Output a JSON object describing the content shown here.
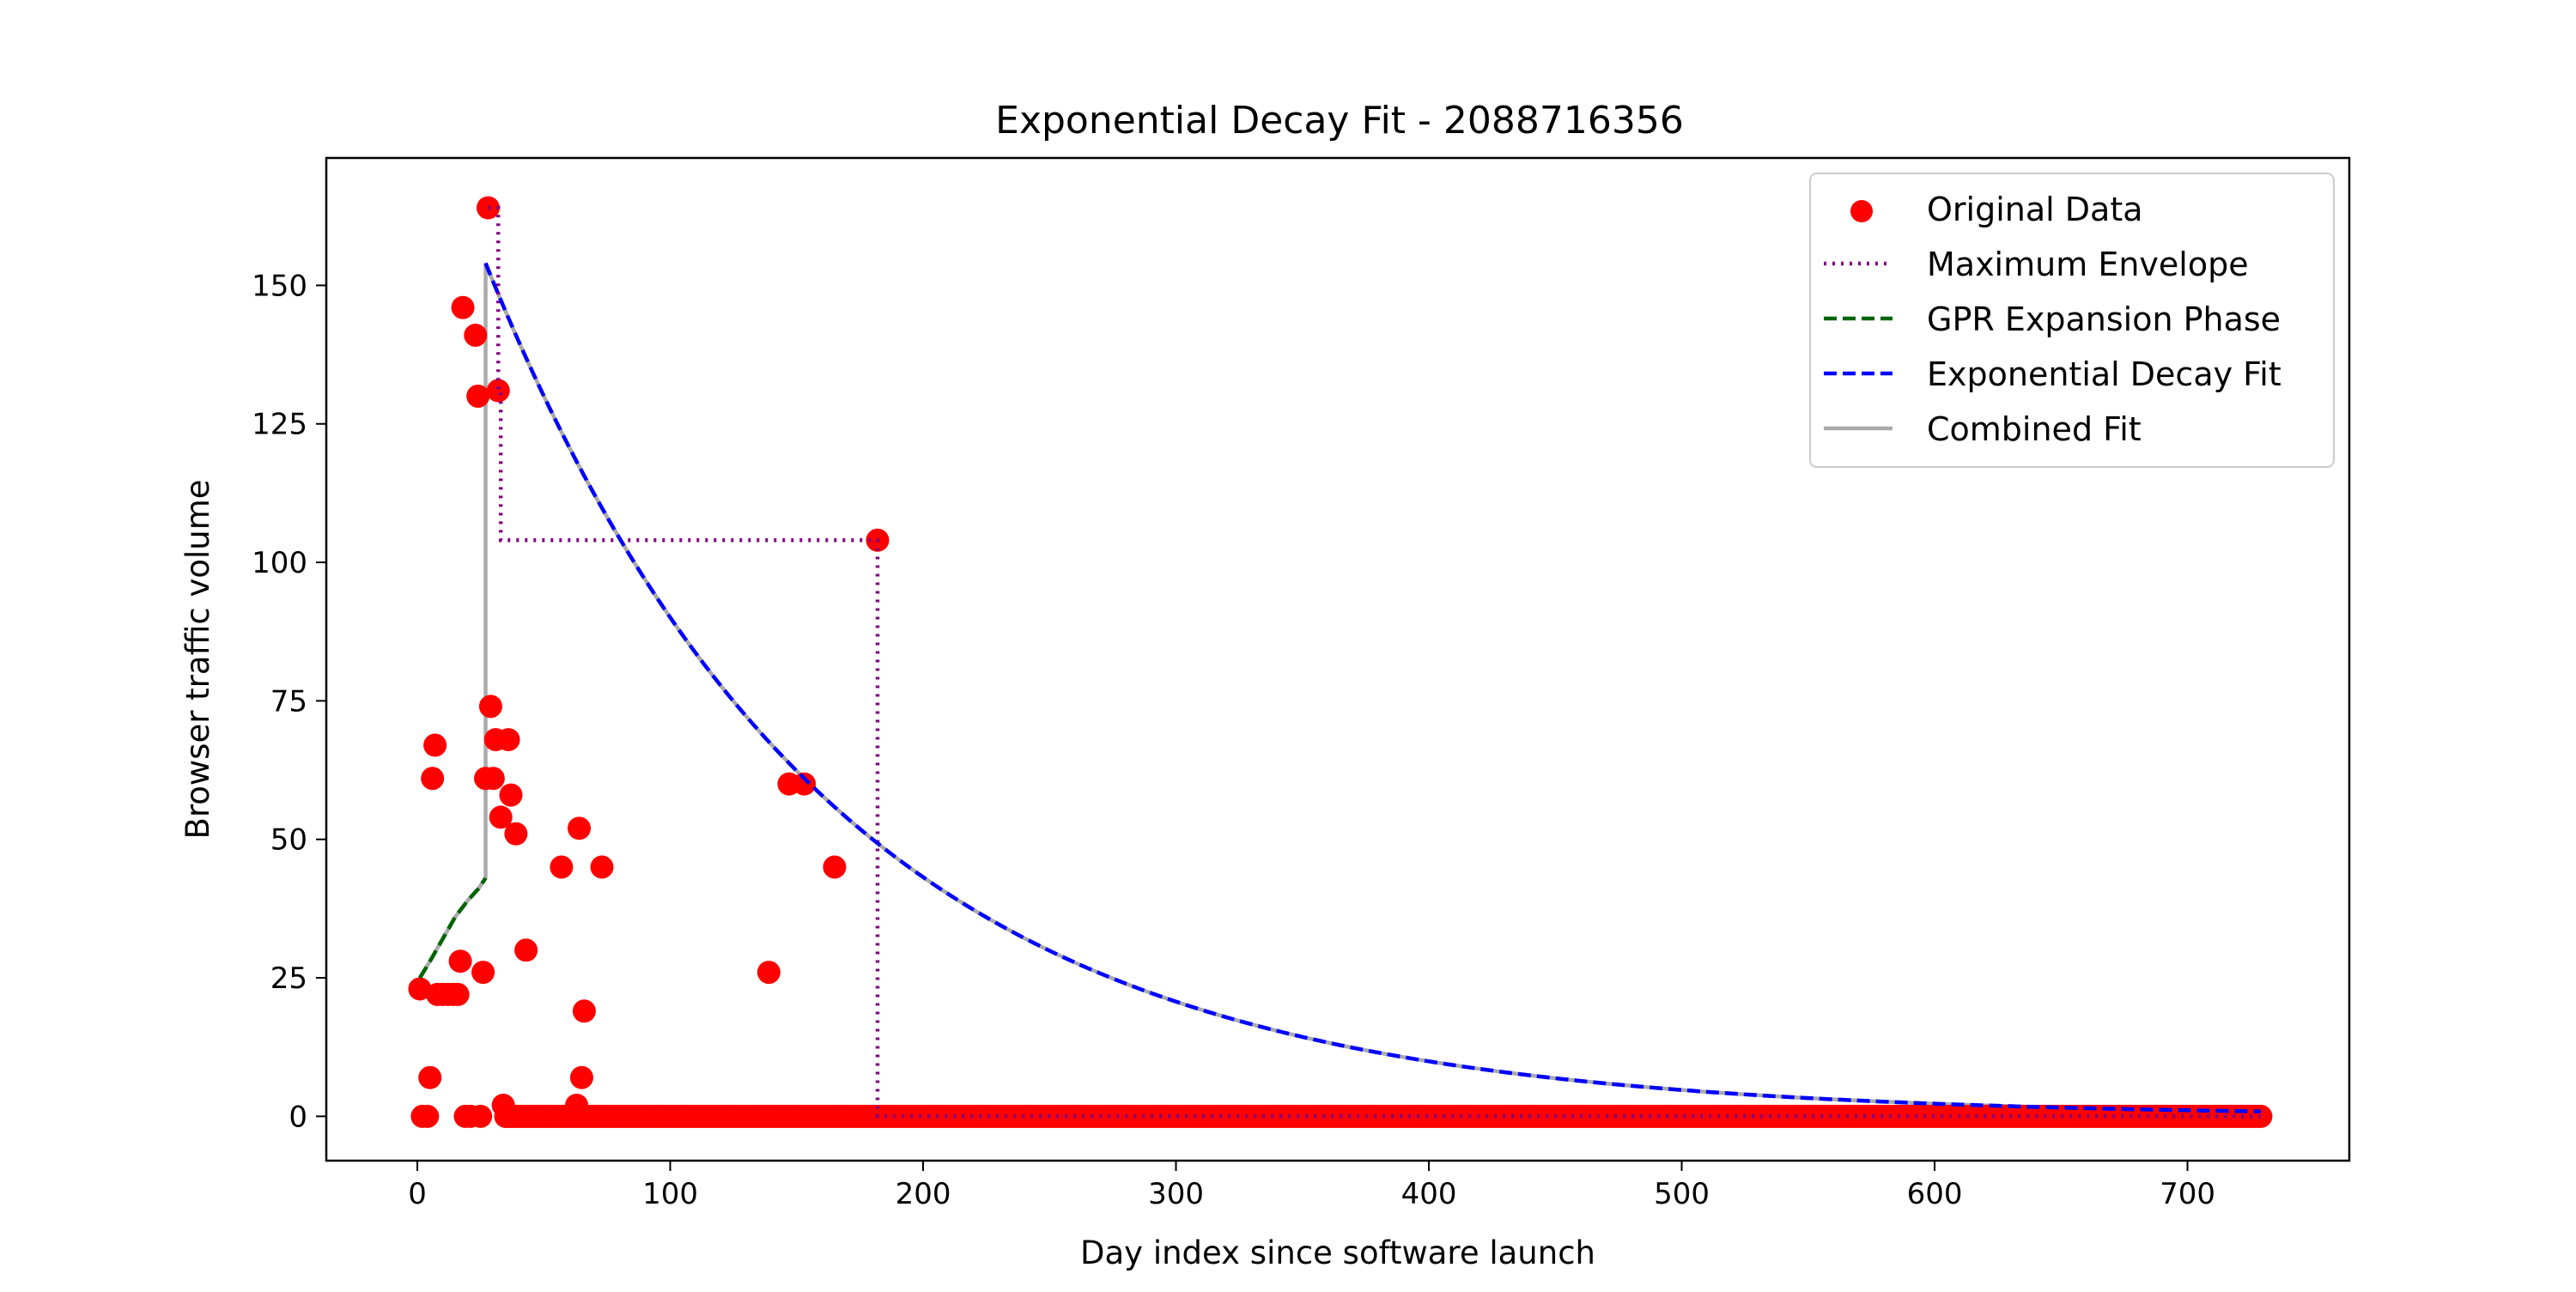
{
  "chart_data": {
    "type": "scatter",
    "title": "Exponential Decay Fit - 2088716356",
    "xlabel": "Day index since software launch",
    "ylabel": "Browser traffic volume",
    "xlim": [
      -36,
      764
    ],
    "ylim": [
      -8,
      173
    ],
    "xticks": [
      0,
      100,
      200,
      300,
      400,
      500,
      600,
      700
    ],
    "yticks": [
      0,
      25,
      50,
      75,
      100,
      125,
      150
    ],
    "grid": false,
    "legend_position": "top-right",
    "series": [
      {
        "name": "Original Data",
        "kind": "scatter",
        "color": "#ff0000",
        "points": [
          [
            1,
            23
          ],
          [
            2,
            0
          ],
          [
            4,
            0
          ],
          [
            5,
            7
          ],
          [
            6,
            61
          ],
          [
            7,
            67
          ],
          [
            8,
            22
          ],
          [
            10,
            22
          ],
          [
            12,
            22
          ],
          [
            14,
            22
          ],
          [
            16,
            22
          ],
          [
            17,
            28
          ],
          [
            18,
            146
          ],
          [
            19,
            0
          ],
          [
            21,
            0
          ],
          [
            23,
            141
          ],
          [
            24,
            130
          ],
          [
            25,
            0
          ],
          [
            26,
            26
          ],
          [
            27,
            61
          ],
          [
            28,
            164
          ],
          [
            29,
            74
          ],
          [
            30,
            61
          ],
          [
            31,
            68
          ],
          [
            32,
            131
          ],
          [
            33,
            54
          ],
          [
            34,
            2
          ],
          [
            35,
            0
          ],
          [
            36,
            68
          ],
          [
            37,
            58
          ],
          [
            39,
            51
          ],
          [
            43,
            30
          ],
          [
            57,
            45
          ],
          [
            63,
            2
          ],
          [
            64,
            52
          ],
          [
            65,
            7
          ],
          [
            66,
            19
          ],
          [
            73,
            45
          ],
          [
            139,
            26
          ],
          [
            147,
            60
          ],
          [
            153,
            60
          ],
          [
            165,
            45
          ],
          [
            182,
            104
          ]
        ],
        "zero_run": {
          "from": 35,
          "to": 729,
          "value": 0
        }
      },
      {
        "name": "Maximum Envelope",
        "kind": "step",
        "color": "#800080",
        "dash": "dotted",
        "points": [
          [
            28,
            164
          ],
          [
            32,
            164
          ],
          [
            32,
            131
          ],
          [
            33,
            131
          ],
          [
            33,
            104
          ],
          [
            182,
            104
          ],
          [
            182,
            0
          ],
          [
            729,
            0
          ]
        ]
      },
      {
        "name": "GPR Expansion Phase",
        "kind": "line",
        "color": "#006400",
        "dash": "dashed",
        "points": [
          [
            1,
            25
          ],
          [
            5,
            28
          ],
          [
            10,
            32
          ],
          [
            15,
            36
          ],
          [
            20,
            39
          ],
          [
            24,
            41
          ],
          [
            27,
            43
          ]
        ]
      },
      {
        "name": "Exponential Decay Fit",
        "kind": "decay",
        "color": "#0000ff",
        "dash": "dashed",
        "start_x": 27,
        "end_x": 729,
        "a": 154,
        "rate": 0.00735
      },
      {
        "name": "Combined Fit",
        "kind": "combined",
        "color": "#aaaaaa",
        "dash": "solid"
      }
    ]
  }
}
